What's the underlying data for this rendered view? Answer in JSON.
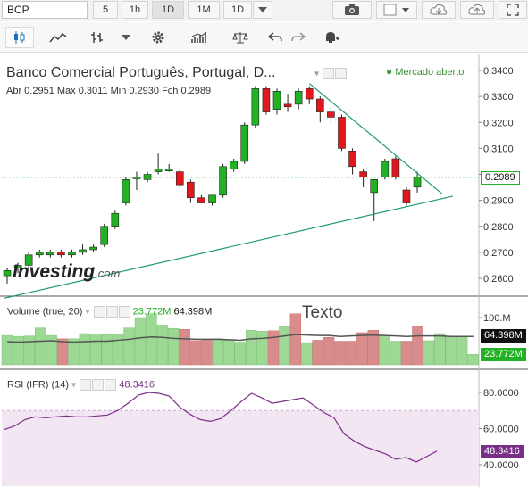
{
  "toolbar": {
    "symbol": "BCP",
    "timeframes": [
      "5",
      "1h",
      "1D",
      "1M",
      "1D"
    ],
    "active_timeframe_index": 2
  },
  "header": {
    "title": "Banco Comercial Português, Portugal, D...",
    "ohlc": "Abr 0.2951 Max 0.3011 Min 0.2930 Fch 0.2989",
    "market_status": "Mercado aberto"
  },
  "panes": {
    "volume_label": "Volume (true, 20)",
    "volume_value_1": "23.772M",
    "volume_value_2": "64.398M",
    "rsi_label": "RSI (IFR) (14)",
    "rsi_value": "48.3416"
  },
  "annotations": {
    "text_tool": "Texto",
    "logo_main": "Investing",
    "logo_suffix": ".com"
  },
  "colors": {
    "up": "#22b122",
    "down": "#e0181e",
    "vol_up": "#9dd894",
    "vol_down": "#d98c8c",
    "rsi_band": "#f3e6f3",
    "rsi_line": "#7a2f86",
    "trendline": "#1f9a6e"
  },
  "chart_data": [
    {
      "type": "candlestick",
      "title": "Banco Comercial Português, Portugal, D...",
      "ylim": [
        0.25,
        0.345
      ],
      "y_ticks": [
        "0.3400",
        "0.3300",
        "0.3200",
        "0.3100",
        "0.3000",
        "0.2900",
        "0.2800",
        "0.2700",
        "0.2600"
      ],
      "last_price_label": "0.2989",
      "last_price": 0.2989,
      "candles": [
        {
          "o": 0.261,
          "h": 0.264,
          "l": 0.258,
          "c": 0.263
        },
        {
          "o": 0.264,
          "h": 0.266,
          "l": 0.262,
          "c": 0.265
        },
        {
          "o": 0.265,
          "h": 0.27,
          "l": 0.264,
          "c": 0.269
        },
        {
          "o": 0.269,
          "h": 0.271,
          "l": 0.268,
          "c": 0.27
        },
        {
          "o": 0.269,
          "h": 0.271,
          "l": 0.268,
          "c": 0.27
        },
        {
          "o": 0.27,
          "h": 0.271,
          "l": 0.268,
          "c": 0.269
        },
        {
          "o": 0.269,
          "h": 0.271,
          "l": 0.268,
          "c": 0.27
        },
        {
          "o": 0.27,
          "h": 0.273,
          "l": 0.269,
          "c": 0.271
        },
        {
          "o": 0.271,
          "h": 0.273,
          "l": 0.27,
          "c": 0.272
        },
        {
          "o": 0.273,
          "h": 0.281,
          "l": 0.272,
          "c": 0.28
        },
        {
          "o": 0.28,
          "h": 0.286,
          "l": 0.279,
          "c": 0.285
        },
        {
          "o": 0.289,
          "h": 0.299,
          "l": 0.288,
          "c": 0.298
        },
        {
          "o": 0.299,
          "h": 0.301,
          "l": 0.294,
          "c": 0.299
        },
        {
          "o": 0.298,
          "h": 0.301,
          "l": 0.297,
          "c": 0.3
        },
        {
          "o": 0.301,
          "h": 0.308,
          "l": 0.3,
          "c": 0.302
        },
        {
          "o": 0.302,
          "h": 0.304,
          "l": 0.301,
          "c": 0.302
        },
        {
          "o": 0.301,
          "h": 0.302,
          "l": 0.295,
          "c": 0.296
        },
        {
          "o": 0.297,
          "h": 0.298,
          "l": 0.289,
          "c": 0.291
        },
        {
          "o": 0.291,
          "h": 0.292,
          "l": 0.289,
          "c": 0.289
        },
        {
          "o": 0.289,
          "h": 0.292,
          "l": 0.288,
          "c": 0.292
        },
        {
          "o": 0.292,
          "h": 0.304,
          "l": 0.291,
          "c": 0.303
        },
        {
          "o": 0.302,
          "h": 0.306,
          "l": 0.301,
          "c": 0.305
        },
        {
          "o": 0.305,
          "h": 0.32,
          "l": 0.304,
          "c": 0.319
        },
        {
          "o": 0.319,
          "h": 0.334,
          "l": 0.318,
          "c": 0.333
        },
        {
          "o": 0.333,
          "h": 0.334,
          "l": 0.323,
          "c": 0.324
        },
        {
          "o": 0.325,
          "h": 0.333,
          "l": 0.323,
          "c": 0.332
        },
        {
          "o": 0.327,
          "h": 0.331,
          "l": 0.324,
          "c": 0.326
        },
        {
          "o": 0.327,
          "h": 0.333,
          "l": 0.325,
          "c": 0.332
        },
        {
          "o": 0.333,
          "h": 0.334,
          "l": 0.327,
          "c": 0.329
        },
        {
          "o": 0.329,
          "h": 0.33,
          "l": 0.32,
          "c": 0.324
        },
        {
          "o": 0.324,
          "h": 0.326,
          "l": 0.32,
          "c": 0.322
        },
        {
          "o": 0.322,
          "h": 0.323,
          "l": 0.309,
          "c": 0.31
        },
        {
          "o": 0.309,
          "h": 0.31,
          "l": 0.3,
          "c": 0.303
        },
        {
          "o": 0.301,
          "h": 0.302,
          "l": 0.295,
          "c": 0.299
        },
        {
          "o": 0.293,
          "h": 0.298,
          "l": 0.282,
          "c": 0.298
        },
        {
          "o": 0.299,
          "h": 0.306,
          "l": 0.298,
          "c": 0.305
        },
        {
          "o": 0.306,
          "h": 0.307,
          "l": 0.298,
          "c": 0.299
        },
        {
          "o": 0.294,
          "h": 0.295,
          "l": 0.288,
          "c": 0.289
        },
        {
          "o": 0.2951,
          "h": 0.3011,
          "l": 0.293,
          "c": 0.2989
        }
      ],
      "trendlines": [
        {
          "from": {
            "i": -0.3,
            "y": 0.2523
          },
          "to": {
            "i": 41.3,
            "y": 0.2916
          }
        },
        {
          "from": {
            "i": 28.0,
            "y": 0.335
          },
          "to": {
            "i": 40.3,
            "y": 0.2925
          }
        }
      ]
    },
    {
      "type": "bar",
      "title": "Volume (true, 20)",
      "ylim": [
        0,
        110
      ],
      "y_ticks": [
        "100.M"
      ],
      "current_label": "23.772M",
      "ma_label": "64.398M",
      "values": [
        62,
        60,
        61,
        78,
        62,
        55,
        55,
        66,
        63,
        64,
        65,
        78,
        100,
        108,
        84,
        77,
        75,
        51,
        52,
        55,
        52,
        48,
        73,
        71,
        72,
        81,
        108,
        47,
        52,
        58,
        50,
        50,
        68,
        73,
        62,
        50,
        50,
        82,
        51,
        66,
        60,
        59,
        22
      ],
      "ma": [
        49,
        48,
        49,
        50,
        51,
        49,
        48,
        49,
        50,
        50,
        52,
        54,
        57,
        59,
        58,
        56,
        55,
        54,
        54,
        54,
        53,
        52,
        55,
        56,
        58,
        61,
        64,
        63,
        62,
        62,
        60,
        61,
        62,
        63,
        62,
        61,
        60,
        61,
        61,
        61,
        60,
        60,
        60
      ]
    },
    {
      "type": "line",
      "title": "RSI (IFR) (14)",
      "ylim": [
        40,
        82
      ],
      "y_ticks": [
        "80.0000",
        "60.0000",
        "40.0000"
      ],
      "band": [
        30,
        70
      ],
      "current_label": "48.3416",
      "values": [
        59.5,
        61.5,
        65.0,
        66.5,
        66.0,
        66.5,
        67.0,
        66.5,
        66.5,
        67.0,
        67.5,
        70.0,
        74.0,
        78.5,
        80.0,
        79.5,
        78.0,
        72.0,
        68.0,
        65.0,
        64.0,
        65.5,
        70.0,
        75.0,
        79.5,
        77.0,
        74.0,
        75.0,
        76.0,
        77.0,
        73.0,
        69.0,
        66.0,
        57.0,
        53.0,
        50.0,
        48.0,
        46.0,
        43.0,
        44.0,
        41.5,
        44.5,
        47.5
      ]
    }
  ]
}
